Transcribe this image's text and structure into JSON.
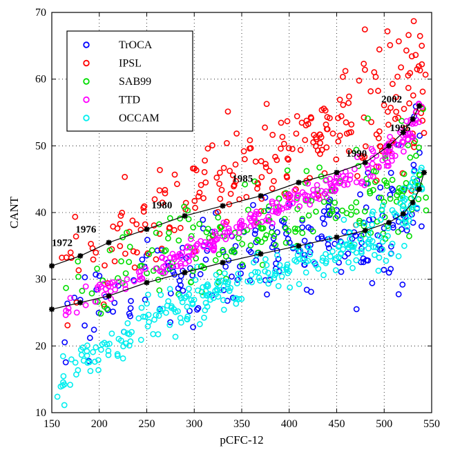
{
  "chart_data": {
    "type": "scatter",
    "xlabel": "pCFC-12",
    "ylabel": "CANT",
    "xlim": [
      150,
      550
    ],
    "ylim": [
      10,
      70
    ],
    "xticks": [
      150,
      200,
      250,
      300,
      350,
      400,
      450,
      500,
      550
    ],
    "yticks": [
      10,
      20,
      30,
      40,
      50,
      60,
      70
    ],
    "grid": true,
    "legend_position": "top-left",
    "series": [
      {
        "name": "TrOCA",
        "color": "#0000ff",
        "trend": [
          [
            160,
            23
          ],
          [
            200,
            26
          ],
          [
            250,
            28.5
          ],
          [
            300,
            31
          ],
          [
            350,
            33
          ],
          [
            400,
            35
          ],
          [
            450,
            37
          ],
          [
            490,
            39
          ],
          [
            520,
            41
          ],
          [
            540,
            44
          ]
        ],
        "spread": 3.5,
        "count": 220
      },
      {
        "name": "IPSL",
        "color": "#ff0000",
        "trend": [
          [
            160,
            31
          ],
          [
            200,
            35
          ],
          [
            250,
            38.5
          ],
          [
            300,
            42
          ],
          [
            350,
            45.5
          ],
          [
            400,
            49
          ],
          [
            450,
            52.5
          ],
          [
            490,
            56
          ],
          [
            520,
            59
          ],
          [
            545,
            61
          ]
        ],
        "spread": 4.0,
        "count": 260
      },
      {
        "name": "SAB99",
        "color": "#00dd00",
        "trend": [
          [
            160,
            27
          ],
          [
            200,
            29.5
          ],
          [
            250,
            31.5
          ],
          [
            300,
            34
          ],
          [
            350,
            36.5
          ],
          [
            400,
            39
          ],
          [
            450,
            41.5
          ],
          [
            500,
            43.5
          ],
          [
            530,
            45
          ],
          [
            545,
            47
          ]
        ],
        "spread": 3.0,
        "count": 220
      },
      {
        "name": "TTD",
        "color": "#ff00ff",
        "trend": [
          [
            160,
            25
          ],
          [
            200,
            28
          ],
          [
            250,
            31
          ],
          [
            300,
            34.5
          ],
          [
            350,
            38
          ],
          [
            400,
            41.5
          ],
          [
            450,
            44.5
          ],
          [
            490,
            47.5
          ],
          [
            520,
            51
          ],
          [
            540,
            55
          ]
        ],
        "spread": 0.8,
        "count": 260
      },
      {
        "name": "OCCAM",
        "color": "#00eeee",
        "trend": [
          [
            150,
            13.5
          ],
          [
            200,
            19
          ],
          [
            250,
            23.5
          ],
          [
            300,
            27
          ],
          [
            350,
            29.5
          ],
          [
            400,
            32
          ],
          [
            450,
            34
          ],
          [
            490,
            36.5
          ],
          [
            520,
            39
          ],
          [
            540,
            46
          ]
        ],
        "spread": 1.6,
        "count": 300
      }
    ],
    "time_curves": [
      {
        "name": "upper",
        "points": [
          [
            150,
            32
          ],
          [
            180,
            33.5
          ],
          [
            210,
            35.5
          ],
          [
            250,
            37.5
          ],
          [
            290,
            39.5
          ],
          [
            330,
            41
          ],
          [
            370,
            42.5
          ],
          [
            410,
            44.5
          ],
          [
            450,
            46
          ],
          [
            480,
            47.5
          ],
          [
            505,
            50
          ],
          [
            520,
            52
          ],
          [
            530,
            54
          ],
          [
            537,
            56
          ]
        ]
      },
      {
        "name": "lower",
        "points": [
          [
            150,
            25.5
          ],
          [
            180,
            26.5
          ],
          [
            210,
            27.5
          ],
          [
            250,
            29.5
          ],
          [
            290,
            31
          ],
          [
            330,
            32.5
          ],
          [
            370,
            33.8
          ],
          [
            410,
            35
          ],
          [
            450,
            36.3
          ],
          [
            480,
            37.3
          ],
          [
            505,
            38.5
          ],
          [
            520,
            39.8
          ],
          [
            530,
            41.5
          ],
          [
            537,
            43.5
          ],
          [
            542,
            46
          ]
        ]
      }
    ],
    "annotations": [
      {
        "text": "1972",
        "x": 150,
        "y": 35
      },
      {
        "text": "1976",
        "x": 175,
        "y": 37
      },
      {
        "text": "1980",
        "x": 255,
        "y": 40.6
      },
      {
        "text": "1985",
        "x": 340,
        "y": 44.6
      },
      {
        "text": "1990",
        "x": 460,
        "y": 48.4
      },
      {
        "text": "1995",
        "x": 506,
        "y": 52.2
      },
      {
        "text": "2002",
        "x": 497,
        "y": 56.5
      }
    ]
  }
}
